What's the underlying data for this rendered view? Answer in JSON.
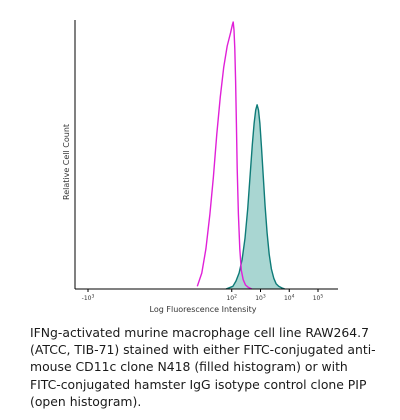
{
  "chart_data": {
    "type": "area",
    "title": "",
    "xlabel": "Log Fluorescence Intensity",
    "ylabel": "Relative Cell Count",
    "x_scale": "log",
    "xlim": [
      -1000,
      100000
    ],
    "ylim": [
      0,
      1
    ],
    "grid": false,
    "legend": "none",
    "tick_labels": [
      {
        "value": -1000,
        "label": "-10",
        "sup": "3"
      },
      {
        "value": 100,
        "label": "10",
        "sup": "2"
      },
      {
        "value": 1000,
        "label": "10",
        "sup": "3"
      },
      {
        "value": 10000,
        "label": "10",
        "sup": "4"
      },
      {
        "value": 100000,
        "label": "10",
        "sup": "5"
      }
    ],
    "series": [
      {
        "style": "open",
        "color": "#e020d8",
        "x": [
          40,
          48,
          55,
          62,
          68,
          74,
          80,
          86,
          92,
          98,
          105,
          112,
          120,
          128,
          136,
          145,
          155,
          170,
          190,
          215,
          250,
          300,
          380,
          500
        ],
        "y": [
          0.01,
          0.06,
          0.15,
          0.28,
          0.42,
          0.58,
          0.72,
          0.83,
          0.91,
          0.96,
          0.99,
          1.0,
          0.97,
          0.9,
          0.78,
          0.62,
          0.45,
          0.28,
          0.15,
          0.07,
          0.035,
          0.015,
          0.006,
          0.0
        ]
      },
      {
        "style": "filled",
        "color": "#0e7b78",
        "fill": "#a9d6d2",
        "x": [
          90,
          110,
          140,
          180,
          230,
          290,
          360,
          440,
          520,
          600,
          680,
          760,
          850,
          950,
          1080,
          1250,
          1450,
          1700,
          2000,
          2400,
          2900,
          3500,
          4300,
          5500,
          7000
        ],
        "y": [
          0.0,
          0.01,
          0.03,
          0.06,
          0.11,
          0.19,
          0.3,
          0.43,
          0.54,
          0.62,
          0.67,
          0.69,
          0.67,
          0.62,
          0.53,
          0.42,
          0.31,
          0.21,
          0.13,
          0.075,
          0.04,
          0.02,
          0.01,
          0.004,
          0.0
        ]
      }
    ]
  },
  "caption": "IFNg-activated murine macrophage cell line RAW264.7 (ATCC, TIB-71) stained with either FITC-conjugated anti-mouse CD11c clone N418 (filled histogram) or with FITC-conjugated hamster IgG isotype control clone PIP (open histogram)."
}
